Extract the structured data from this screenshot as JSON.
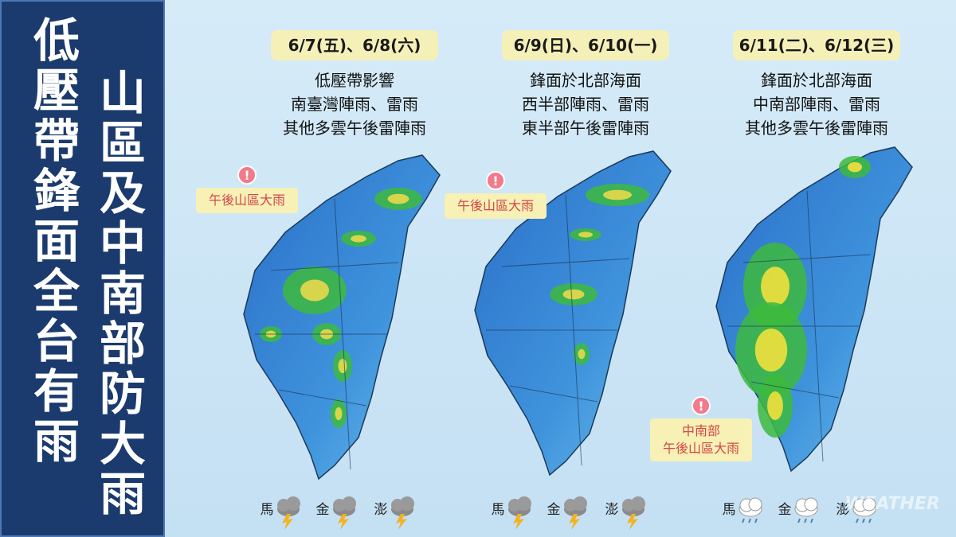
{
  "sidebar": {
    "headline_columns": [
      "低壓帶鋒面全台有雨",
      "山區及中南部防大雨"
    ]
  },
  "panels": [
    {
      "date": "6/7(五)、6/8(六)",
      "lines": [
        "低壓帶影響",
        "南臺灣陣雨、雷雨",
        "其他多雲午後雷陣雨"
      ],
      "callout": [
        "午後山區大雨"
      ],
      "islands": [
        "馬",
        "金",
        "澎"
      ]
    },
    {
      "date": "6/9(日)、6/10(一)",
      "lines": [
        "鋒面於北部海面",
        "西半部陣雨、雷雨",
        "東半部午後雷陣雨"
      ],
      "callout": [
        "午後山區大雨"
      ],
      "islands": [
        "馬",
        "金",
        "澎"
      ]
    },
    {
      "date": "6/11(二)、6/12(三)",
      "lines": [
        "鋒面於北部海面",
        "中南部陣雨、雷雨",
        "其他多雲午後雷陣雨"
      ],
      "callout": [
        "中南部",
        "午後山區大雨"
      ],
      "islands": [
        "馬",
        "金",
        "澎"
      ]
    }
  ],
  "watermark": "WEATHER"
}
